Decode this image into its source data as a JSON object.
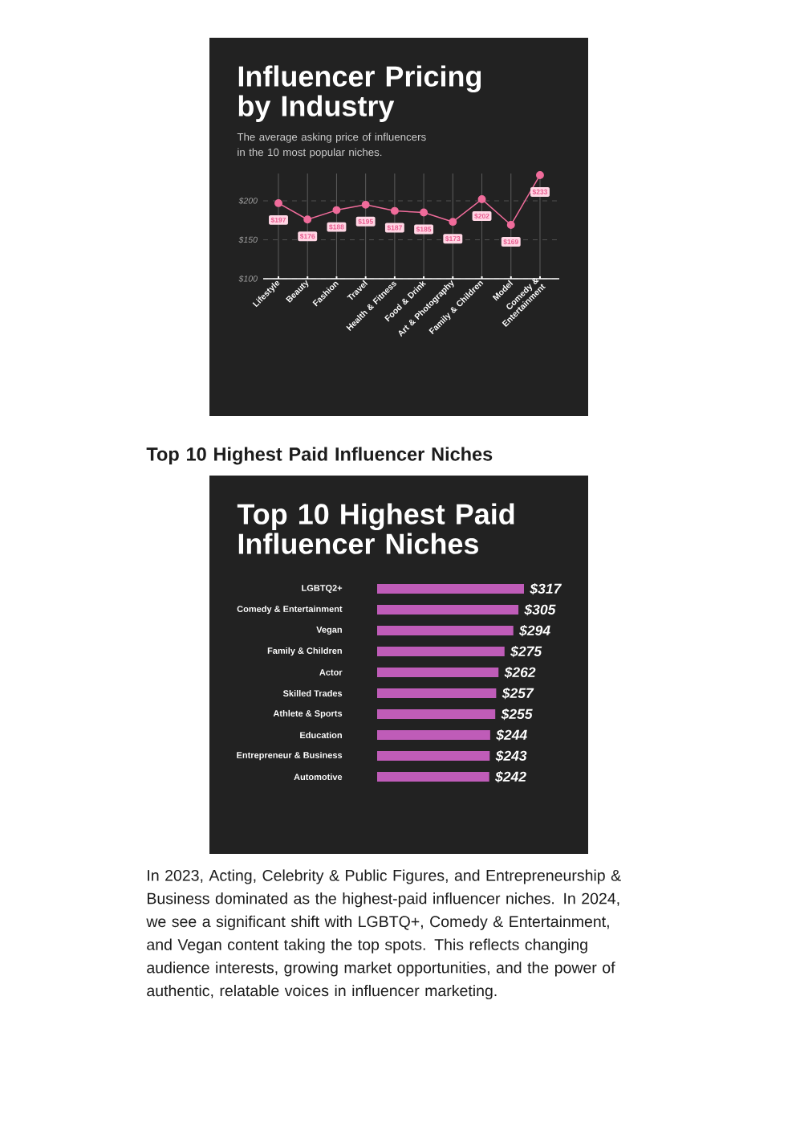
{
  "chart_data": [
    {
      "type": "line",
      "title": "Influencer Pricing by Industry",
      "subtitle": "The average asking price of influencers in the 10 most popular niches.",
      "categories": [
        "Lifestyle",
        "Beauty",
        "Fashion",
        "Travel",
        "Health & Fitness",
        "Food & Drink",
        "Art & Photography",
        "Family & Children",
        "Model",
        "Comedy & Entertainment"
      ],
      "values": [
        197,
        176,
        188,
        195,
        187,
        185,
        173,
        202,
        169,
        233
      ],
      "value_labels": [
        "$197",
        "$176",
        "$188",
        "$195",
        "$187",
        "$185",
        "$173",
        "$202",
        "$169",
        "$233"
      ],
      "color": "#f06c9b",
      "marker": "circle",
      "line_style": "solid",
      "ylim": [
        100,
        235
      ],
      "yticks": [
        {
          "value": 100,
          "label": "$100"
        },
        {
          "value": 150,
          "label": "$150"
        },
        {
          "value": 200,
          "label": "$200"
        }
      ],
      "grid": true
    },
    {
      "type": "bar",
      "orientation": "horizontal",
      "title": "Top 10 Highest Paid Influencer Niches",
      "categories": [
        "LGBTQ2+",
        "Comedy & Entertainment",
        "Vegan",
        "Family & Children",
        "Actor",
        "Skilled Trades",
        "Athlete & Sports",
        "Education",
        "Entrepreneur & Business",
        "Automotive"
      ],
      "values": [
        317,
        305,
        294,
        275,
        262,
        257,
        255,
        244,
        243,
        242
      ],
      "value_labels": [
        "$317",
        "$305",
        "$294",
        "$275",
        "$262",
        "$257",
        "$255",
        "$244",
        "$243",
        "$242"
      ],
      "color": "#bf5cb8",
      "tick_labels": "y",
      "annotations": [
        "Top 10 Highest Paid Influencer Niches",
        "In 2023, Acting, Celebrity & Public Figures, and Entrepreneurship & Business dominated as the highest-paid influencer niches. In 2024, we see a significant shift with LGBTQ+, Comedy & Entertainment, and Vegan content taking the top spots. This reflects changing audience interests, growing market opportunities, and the power of authentic, relatable voices in influencer marketing."
      ]
    }
  ]
}
